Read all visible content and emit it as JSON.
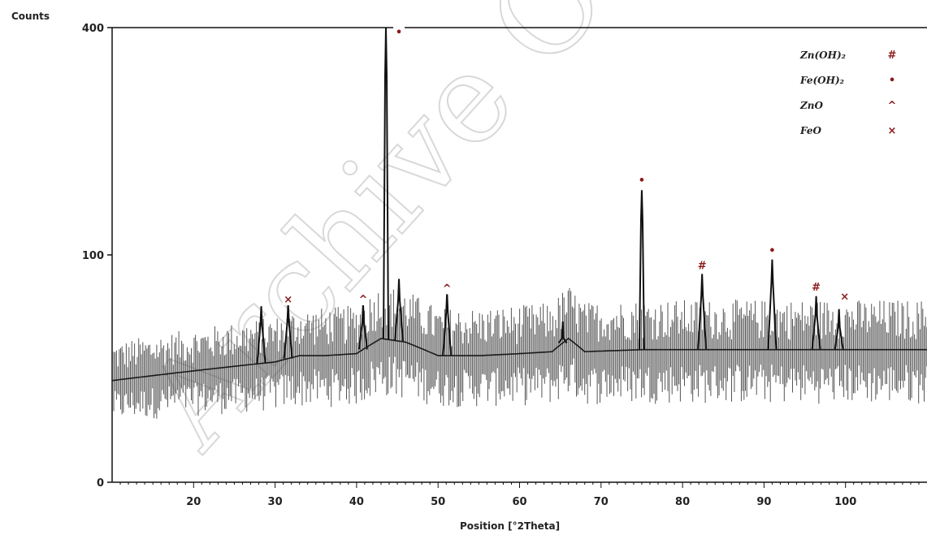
{
  "chart_data": {
    "type": "line",
    "ylabel": "Counts",
    "xlabel": "Position [°2Theta]",
    "xlim": [
      10,
      110
    ],
    "ylim": [
      0,
      400
    ],
    "y_scale": "sqrt",
    "x_ticks": [
      20,
      30,
      40,
      50,
      60,
      70,
      80,
      90,
      100
    ],
    "y_ticks": [
      0,
      100,
      400
    ],
    "grid": false,
    "legend_position": "top-right",
    "legend": [
      {
        "label": "Zn(OH)₂",
        "symbol": "#"
      },
      {
        "label": "Fe(OH)₂",
        "symbol": "•"
      },
      {
        "label": "ZnO",
        "symbol": "^"
      },
      {
        "label": "FeO",
        "symbol": "×"
      }
    ],
    "marker_color": "#8b1a1a",
    "line_color": "#1a1a1a",
    "baseline": [
      [
        10,
        20
      ],
      [
        15,
        22
      ],
      [
        20,
        24
      ],
      [
        25,
        26
      ],
      [
        30,
        28
      ],
      [
        33,
        31
      ],
      [
        36,
        31
      ],
      [
        40,
        32
      ],
      [
        43,
        40
      ],
      [
        46,
        38
      ],
      [
        50,
        31
      ],
      [
        55,
        31
      ],
      [
        60,
        32
      ],
      [
        64,
        33
      ],
      [
        66,
        40
      ],
      [
        68,
        33
      ],
      [
        75,
        34
      ],
      [
        80,
        34
      ],
      [
        85,
        34
      ],
      [
        90,
        34
      ],
      [
        95,
        34
      ],
      [
        100,
        34
      ],
      [
        105,
        34
      ],
      [
        110,
        34
      ]
    ],
    "peaks": [
      {
        "x": 28.3,
        "y": 60
      },
      {
        "x": 31.6,
        "y": 62,
        "phase": "FeO"
      },
      {
        "x": 40.8,
        "y": 62,
        "phase": "ZnO"
      },
      {
        "x": 43.6,
        "y": 400,
        "phase": "Fe(OH)₂"
      },
      {
        "x": 45.2,
        "y": 80
      },
      {
        "x": 51.1,
        "y": 70,
        "phase": "ZnO"
      },
      {
        "x": 65.3,
        "y": 50
      },
      {
        "x": 75.0,
        "y": 165,
        "phase": "Fe(OH)₂"
      },
      {
        "x": 82.4,
        "y": 84,
        "phase": "Zn(OH)₂"
      },
      {
        "x": 91.0,
        "y": 96,
        "phase": "Fe(OH)₂"
      },
      {
        "x": 96.4,
        "y": 67,
        "phase": "Zn(OH)₂"
      },
      {
        "x": 99.2,
        "y": 58,
        "phase": "FeO"
      }
    ],
    "annotations": [
      {
        "x": 31.6,
        "y": 64,
        "symbol": "×"
      },
      {
        "x": 40.8,
        "y": 64,
        "symbol": "^"
      },
      {
        "x": 45.2,
        "y": 390,
        "symbol": "•"
      },
      {
        "x": 51.1,
        "y": 72,
        "symbol": "^"
      },
      {
        "x": 75.0,
        "y": 175,
        "symbol": "•"
      },
      {
        "x": 82.4,
        "y": 90,
        "symbol": "#"
      },
      {
        "x": 91.0,
        "y": 103,
        "symbol": "•"
      },
      {
        "x": 96.4,
        "y": 73,
        "symbol": "#"
      },
      {
        "x": 99.9,
        "y": 66,
        "symbol": "×"
      }
    ]
  },
  "watermark": "Archive Of"
}
